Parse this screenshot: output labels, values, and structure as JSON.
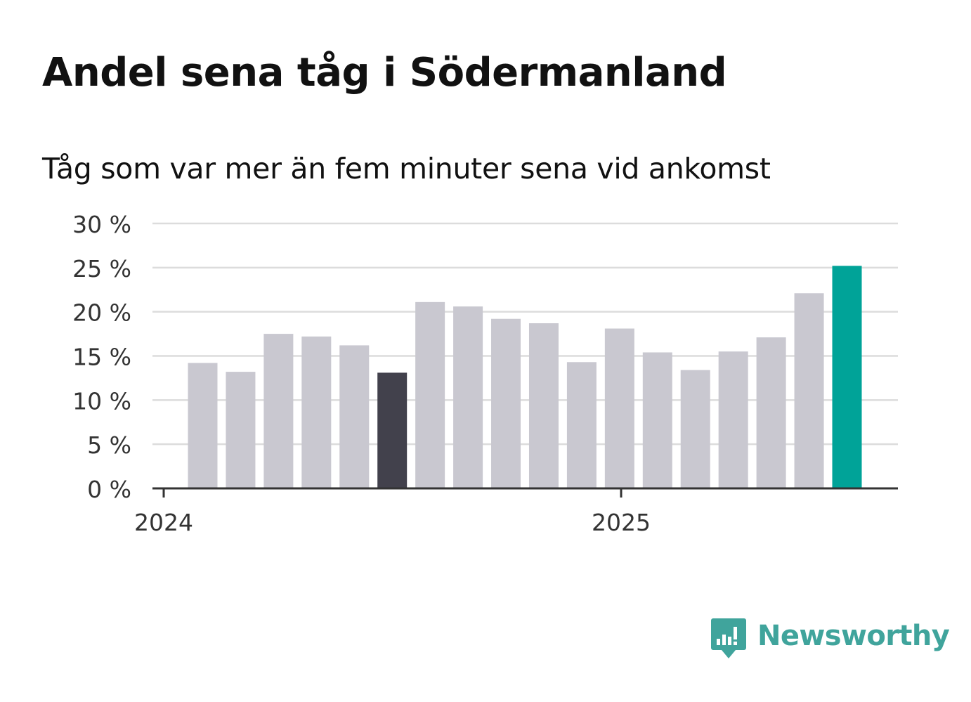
{
  "chart_data": {
    "type": "bar",
    "title": "Andel sena tåg i Södermanland",
    "subtitle": "Tåg som var mer än fem minuter sena vid ankomst",
    "x": [
      "2024-01",
      "2024-02",
      "2024-03",
      "2024-04",
      "2024-05",
      "2024-06",
      "2024-07",
      "2024-08",
      "2024-09",
      "2024-10",
      "2024-11",
      "2024-12",
      "2025-01",
      "2025-02",
      "2025-03",
      "2025-04",
      "2025-05",
      "2025-06"
    ],
    "values": [
      14.2,
      13.2,
      17.5,
      17.2,
      16.2,
      13.1,
      21.1,
      20.6,
      19.2,
      18.7,
      14.3,
      18.1,
      15.4,
      13.4,
      15.5,
      17.1,
      22.1,
      25.2
    ],
    "highlights": {
      "5": "#42414c",
      "17": "#00a398"
    },
    "bar_color": "#c9c8d0",
    "ylim": [
      0,
      30
    ],
    "yticks": [
      0,
      5,
      10,
      15,
      20,
      25,
      30
    ],
    "ytick_labels": [
      "0 %",
      "5 %",
      "10 %",
      "15 %",
      "20 %",
      "25 %",
      "30 %"
    ],
    "xticks": [
      {
        "value": "2024-01",
        "label": "2024"
      },
      {
        "value": "2025-01",
        "label": "2025"
      }
    ],
    "grid": true,
    "xlabel": "",
    "ylabel": ""
  },
  "branding": {
    "logo_text": "Newsworthy",
    "logo_icon": "newsworthy-bar-chart-icon",
    "color": "#40a49c"
  }
}
